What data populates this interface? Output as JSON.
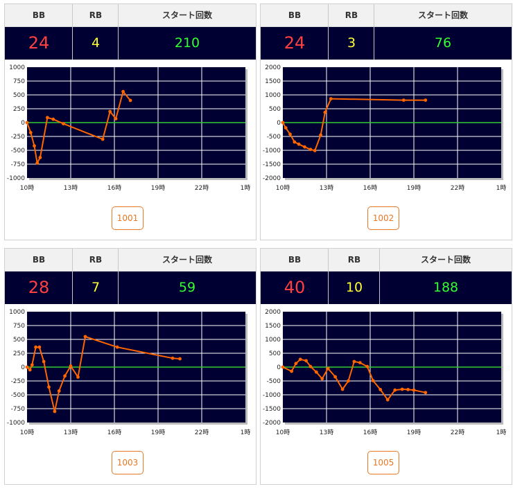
{
  "header_labels": {
    "bb": "BB",
    "rb": "RB",
    "start": "スタート回数"
  },
  "colors": {
    "bb": "#ff4040",
    "rb": "#ffff33",
    "start": "#33ff33",
    "line": "#ff6600",
    "plot_bg": "#000033",
    "zero_line": "#33cc33",
    "button": "#e87722"
  },
  "cards": [
    {
      "bb": "24",
      "rb": "4",
      "start": "210",
      "machine": "1001"
    },
    {
      "bb": "24",
      "rb": "3",
      "start": "76",
      "machine": "1002"
    },
    {
      "bb": "28",
      "rb": "7",
      "start": "59",
      "machine": "1003"
    },
    {
      "bb": "40",
      "rb": "10",
      "start": "188",
      "machine": "1005"
    }
  ],
  "chart_data": [
    {
      "type": "line",
      "x_tick_labels": [
        "10時",
        "13時",
        "16時",
        "19時",
        "22時",
        "1時"
      ],
      "xlim": [
        10,
        25
      ],
      "ylim": [
        -1000,
        1000
      ],
      "y_tick_labels": [
        "1000",
        "750",
        "500",
        "250",
        "0",
        "-250",
        "-500",
        "-750",
        "-1000"
      ],
      "grid": true,
      "x": [
        10.0,
        10.25,
        10.5,
        10.7,
        10.9,
        11.4,
        11.8,
        12.5,
        15.2,
        15.7,
        16.1,
        16.6,
        17.1
      ],
      "y": [
        0,
        -180,
        -420,
        -730,
        -630,
        90,
        60,
        -20,
        -300,
        200,
        70,
        560,
        400
      ]
    },
    {
      "type": "line",
      "x_tick_labels": [
        "10時",
        "13時",
        "16時",
        "19時",
        "22時",
        "1時"
      ],
      "xlim": [
        10,
        25
      ],
      "ylim": [
        -2000,
        2000
      ],
      "y_tick_labels": [
        "2000",
        "1500",
        "1000",
        "500",
        "0",
        "-500",
        "-1000",
        "-1500",
        "-2000"
      ],
      "grid": true,
      "x": [
        10.0,
        10.2,
        10.5,
        10.8,
        11.1,
        11.5,
        11.9,
        12.2,
        12.6,
        12.9,
        13.3,
        18.3,
        19.8
      ],
      "y": [
        0,
        -190,
        -420,
        -700,
        -780,
        -880,
        -970,
        -1010,
        -450,
        370,
        860,
        810,
        810
      ]
    },
    {
      "type": "line",
      "x_tick_labels": [
        "10時",
        "13時",
        "16時",
        "19時",
        "22時",
        "1時"
      ],
      "xlim": [
        10,
        25
      ],
      "ylim": [
        -1000,
        1000
      ],
      "y_tick_labels": [
        "1000",
        "750",
        "500",
        "250",
        "0",
        "-250",
        "-500",
        "-750",
        "-1000"
      ],
      "grid": true,
      "x": [
        10.0,
        10.2,
        10.35,
        10.6,
        10.85,
        11.15,
        11.5,
        11.9,
        12.2,
        12.6,
        13.0,
        13.5,
        14.0,
        16.2,
        20.0,
        20.5
      ],
      "y": [
        0,
        -50,
        40,
        360,
        360,
        100,
        -360,
        -800,
        -430,
        -160,
        20,
        -180,
        550,
        360,
        160,
        150
      ]
    },
    {
      "type": "line",
      "x_tick_labels": [
        "10時",
        "13時",
        "16時",
        "19時",
        "22時",
        "1時"
      ],
      "xlim": [
        10,
        25
      ],
      "ylim": [
        -2000,
        2000
      ],
      "y_tick_labels": [
        "2000",
        "1500",
        "1000",
        "500",
        "0",
        "-500",
        "-1000",
        "-1500",
        "-2000"
      ],
      "grid": true,
      "x": [
        10.0,
        10.6,
        10.9,
        11.2,
        11.6,
        11.9,
        12.3,
        12.7,
        13.1,
        13.6,
        14.1,
        14.5,
        14.9,
        15.3,
        15.8,
        16.2,
        16.7,
        17.2,
        17.7,
        18.2,
        18.6,
        19.0,
        19.8
      ],
      "y": [
        0,
        -150,
        130,
        280,
        230,
        20,
        -180,
        -420,
        -50,
        -350,
        -800,
        -500,
        200,
        160,
        20,
        -490,
        -810,
        -1180,
        -830,
        -800,
        -810,
        -830,
        -920
      ]
    }
  ]
}
